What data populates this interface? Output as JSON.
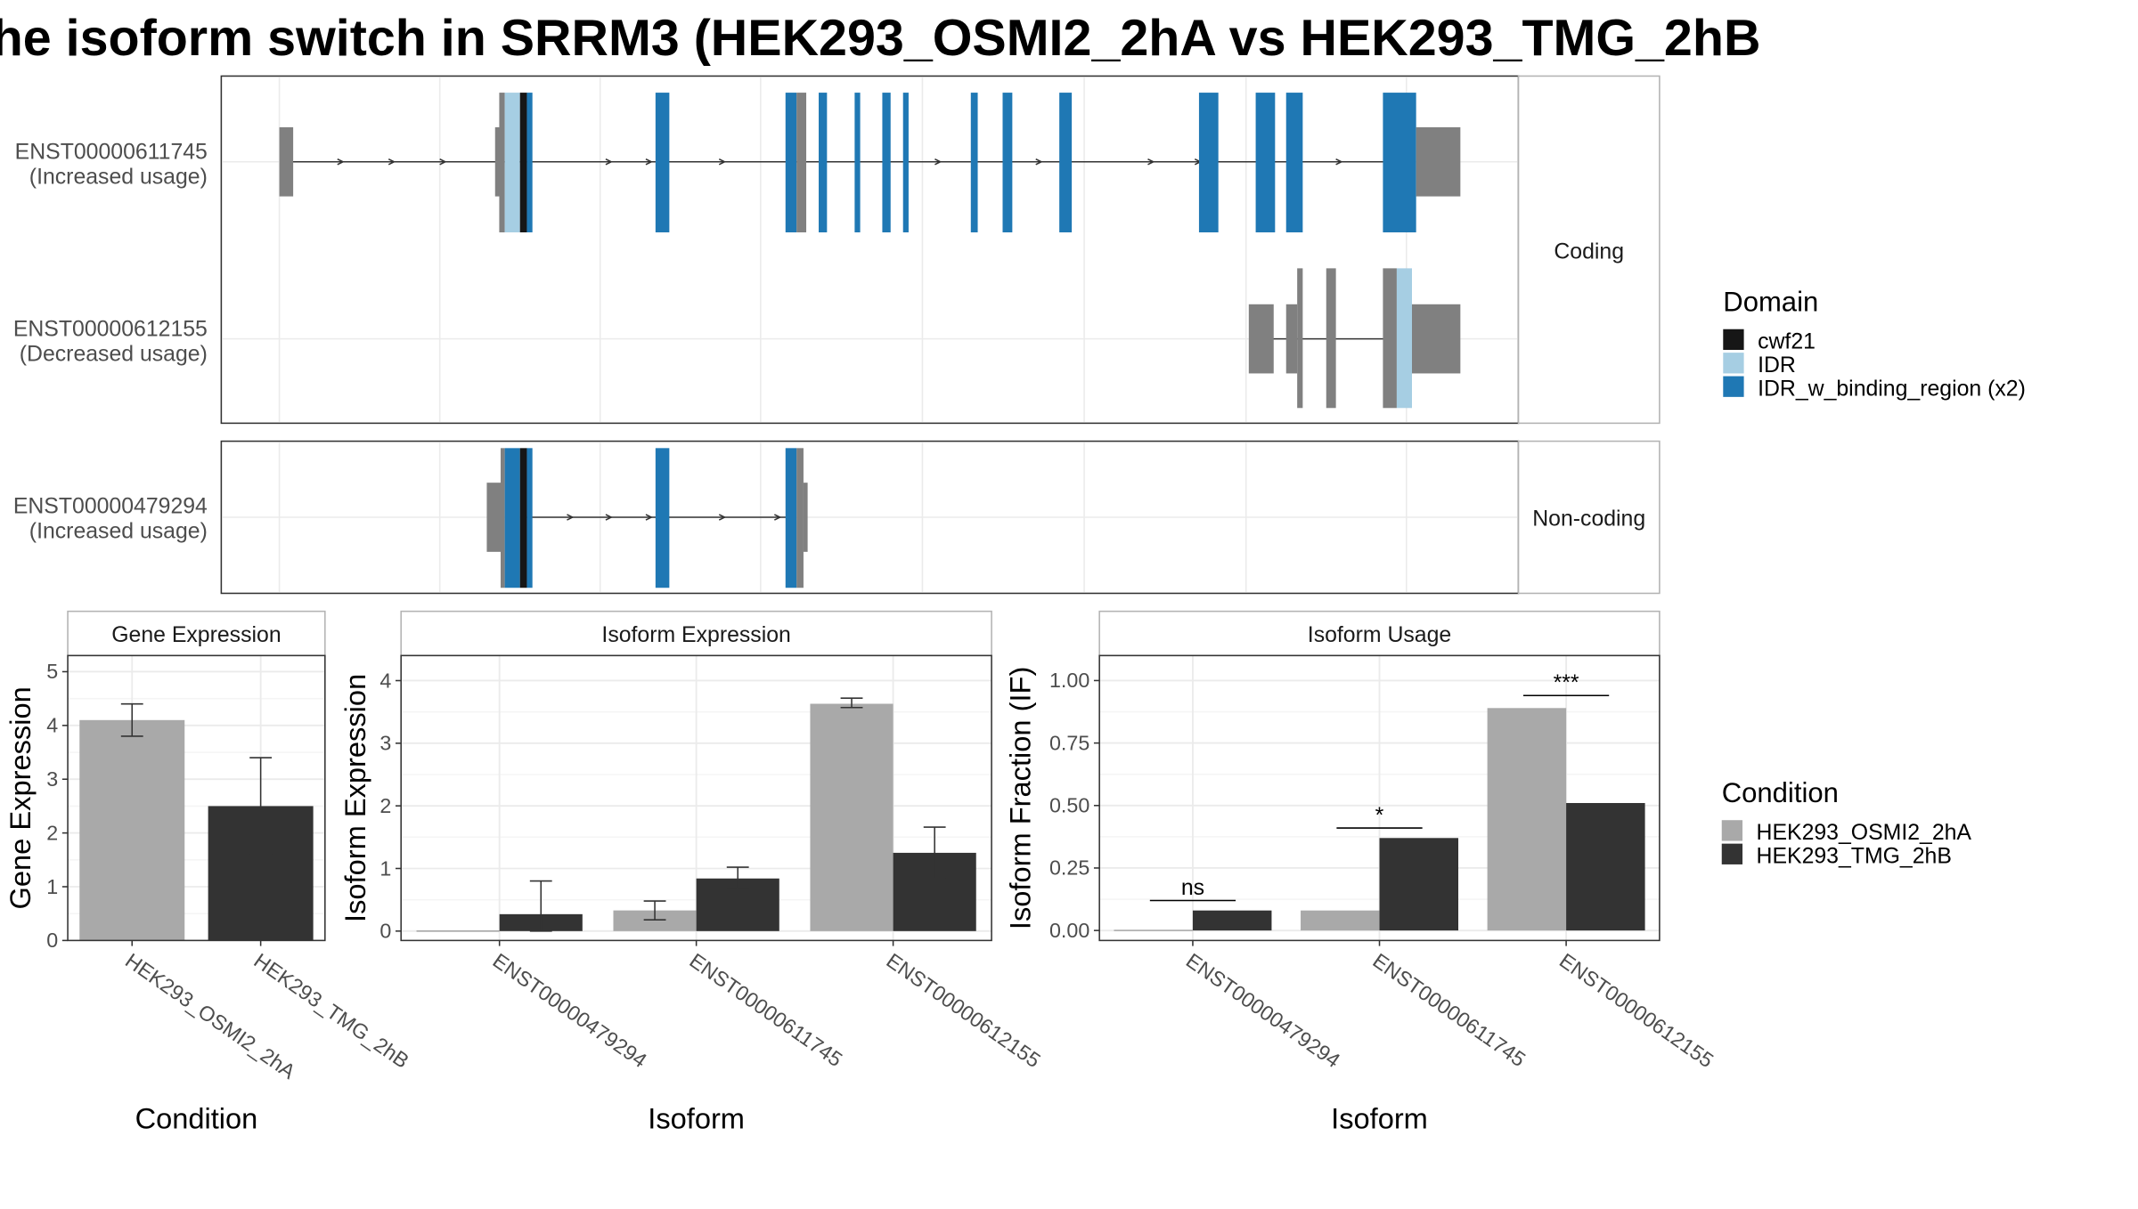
{
  "title": "he isoform switch in SRRM3 (HEK293_OSMI2_2hA vs HEK293_TMG_2hB",
  "colors": {
    "exon_grey": "#808080",
    "cwf21": "#161616",
    "IDR": "#A6CEE3",
    "IDR_w_binding_region": "#1F78B4",
    "cond_a": "#A9A9A9",
    "cond_b": "#333333",
    "grid": "#EBEBEB",
    "panel_border": "#333333"
  },
  "structure": {
    "facets": [
      "Coding",
      "Non-coding"
    ],
    "transcripts": [
      {
        "id": "ENST00000611745",
        "usage": "(Increased usage)",
        "facet": "Coding"
      },
      {
        "id": "ENST00000612155",
        "usage": "(Decreased usage)",
        "facet": "Coding"
      },
      {
        "id": "ENST00000479294",
        "usage": "(Increased usage)",
        "facet": "Non-coding"
      }
    ]
  },
  "legend_domain": {
    "title": "Domain",
    "items": [
      {
        "label": "cwf21",
        "color": "#161616"
      },
      {
        "label": "IDR",
        "color": "#A6CEE3"
      },
      {
        "label": "IDR_w_binding_region (x2)",
        "color": "#1F78B4"
      }
    ]
  },
  "legend_condition": {
    "title": "Condition",
    "items": [
      {
        "label": "HEK293_OSMI2_2hA",
        "color": "#A9A9A9"
      },
      {
        "label": "HEK293_TMG_2hB",
        "color": "#333333"
      }
    ]
  },
  "chart_data": [
    {
      "type": "bar",
      "title": "Gene Expression",
      "xlabel": "Condition",
      "ylabel": "Gene Expression",
      "categories": [
        "HEK293_OSMI2_2hA",
        "HEK293_TMG_2hB"
      ],
      "values": [
        4.1,
        2.5
      ],
      "error_low": [
        3.8,
        1.6
      ],
      "error_high": [
        4.4,
        3.4
      ],
      "ylim": [
        0,
        5.3
      ],
      "yticks": [
        0,
        1,
        2,
        3,
        4,
        5
      ]
    },
    {
      "type": "bar",
      "title": "Isoform Expression",
      "xlabel": "Isoform",
      "ylabel": "Isoform Expression",
      "categories": [
        "ENST00000479294",
        "ENST00000611745",
        "ENST00000612155"
      ],
      "series": [
        {
          "name": "HEK293_OSMI2_2hA",
          "values": [
            0.0,
            0.33,
            3.63
          ],
          "error_low": [
            0.0,
            0.18,
            3.57
          ],
          "error_high": [
            0.0,
            0.48,
            3.72
          ]
        },
        {
          "name": "HEK293_TMG_2hB",
          "values": [
            0.27,
            0.84,
            1.25
          ],
          "error_low": [
            0.0,
            0.67,
            0.84
          ],
          "error_high": [
            0.8,
            1.02,
            1.66
          ]
        }
      ],
      "ylim": [
        -0.15,
        4.4
      ],
      "yticks": [
        0,
        1,
        2,
        3,
        4
      ]
    },
    {
      "type": "bar",
      "title": "Isoform Usage",
      "xlabel": "Isoform",
      "ylabel": "Isoform Fraction (IF)",
      "categories": [
        "ENST00000479294",
        "ENST00000611745",
        "ENST00000612155"
      ],
      "series": [
        {
          "name": "HEK293_OSMI2_2hA",
          "values": [
            0.0,
            0.08,
            0.89
          ]
        },
        {
          "name": "HEK293_TMG_2hB",
          "values": [
            0.08,
            0.37,
            0.51
          ]
        }
      ],
      "significance": [
        "ns",
        "*",
        "***"
      ],
      "significance_level": [
        0.12,
        0.41,
        0.94
      ],
      "ylim": [
        -0.04,
        1.1
      ],
      "yticks": [
        0.0,
        0.25,
        0.5,
        0.75,
        1.0
      ],
      "ytick_labels": [
        "0.00",
        "0.25",
        "0.50",
        "0.75",
        "1.00"
      ]
    }
  ]
}
